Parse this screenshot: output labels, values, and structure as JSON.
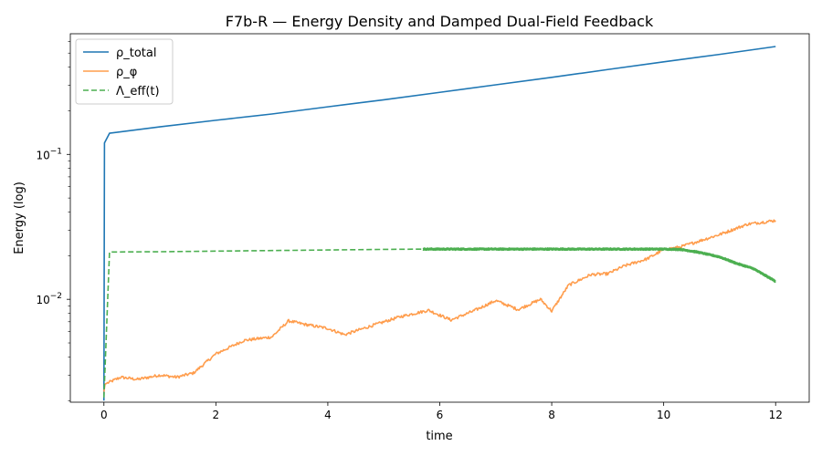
{
  "chart_data": {
    "type": "line",
    "title": "F7b-R — Energy Density and Damped Dual-Field Feedback",
    "xlabel": "time",
    "ylabel": "Energy (log)",
    "xlim": [
      -0.6,
      12.6
    ],
    "ylim": [
      0.00195,
      0.68
    ],
    "yscale": "log",
    "grid": false,
    "legend_position": "top-left",
    "x_ticks": [
      {
        "value": 0,
        "label": "0"
      },
      {
        "value": 2,
        "label": "2"
      },
      {
        "value": 4,
        "label": "4"
      },
      {
        "value": 6,
        "label": "6"
      },
      {
        "value": 8,
        "label": "8"
      },
      {
        "value": 10,
        "label": "10"
      },
      {
        "value": 12,
        "label": "12"
      }
    ],
    "y_major_ticks": [
      {
        "value": 0.01,
        "base": "10",
        "exp": "−2"
      },
      {
        "value": 0.1,
        "base": "10",
        "exp": "−1"
      }
    ],
    "y_minor_ticks": [
      0.002,
      0.003,
      0.004,
      0.005,
      0.006,
      0.007,
      0.008,
      0.009,
      0.02,
      0.03,
      0.04,
      0.05,
      0.06,
      0.07,
      0.08,
      0.09,
      0.2,
      0.3,
      0.4,
      0.5,
      0.6
    ],
    "series": [
      {
        "name": "ρ_total",
        "color": "#1f77b4",
        "dash": "solid",
        "x": [
          0,
          0.01,
          0.1,
          1,
          2,
          3,
          4,
          5,
          6,
          7,
          8,
          9,
          10,
          11,
          12
        ],
        "y": [
          0.002,
          0.12,
          0.14,
          0.155,
          0.172,
          0.19,
          0.213,
          0.238,
          0.268,
          0.302,
          0.34,
          0.385,
          0.435,
          0.49,
          0.555
        ]
      },
      {
        "name": "ρ_φ",
        "color": "#ff9d4d",
        "dash": "solid",
        "x": [
          0,
          0.02,
          0.3,
          0.6,
          1,
          1.3,
          1.6,
          2,
          2.5,
          3,
          3.3,
          3.6,
          4,
          4.3,
          4.8,
          5.3,
          5.8,
          6.2,
          6.6,
          7,
          7.4,
          7.8,
          8,
          8.3,
          8.7,
          9,
          9.3,
          9.7,
          10,
          10.3,
          10.6,
          11,
          11.5,
          12
        ],
        "y": [
          0.0023,
          0.0026,
          0.0029,
          0.0028,
          0.003,
          0.0029,
          0.0031,
          0.0042,
          0.0052,
          0.0055,
          0.0071,
          0.0067,
          0.0063,
          0.0057,
          0.0066,
          0.0076,
          0.0084,
          0.0072,
          0.0083,
          0.0098,
          0.0085,
          0.01,
          0.0083,
          0.0125,
          0.0148,
          0.015,
          0.017,
          0.019,
          0.022,
          0.023,
          0.025,
          0.028,
          0.033,
          0.035
        ]
      },
      {
        "name": "Λ_eff(t)",
        "color": "#4caf50",
        "dash": "dashed",
        "x": [
          0,
          0.1,
          1,
          2,
          3,
          4,
          5,
          5.7,
          6,
          7,
          8,
          9,
          10,
          10.3,
          10.6,
          11,
          11.3,
          11.6,
          12
        ],
        "y": [
          0.0021,
          0.0212,
          0.0213,
          0.0215,
          0.0217,
          0.0219,
          0.0221,
          0.0222,
          0.0222,
          0.0222,
          0.0222,
          0.0222,
          0.0222,
          0.0221,
          0.0212,
          0.0196,
          0.0177,
          0.0163,
          0.0133
        ]
      }
    ]
  }
}
